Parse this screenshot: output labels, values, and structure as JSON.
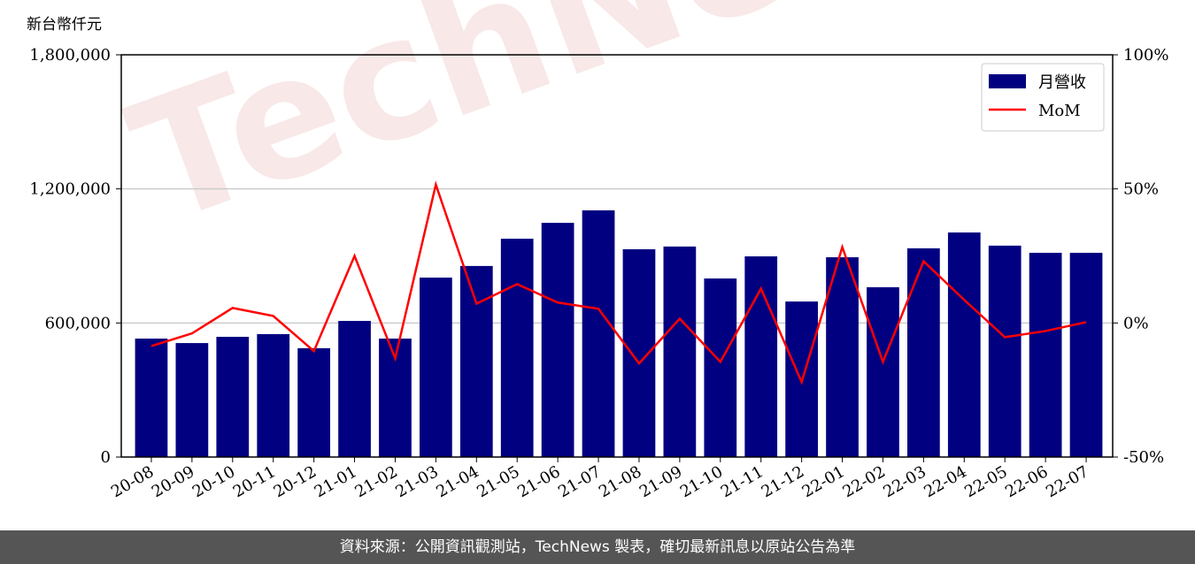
{
  "chart_data": {
    "type": "bar",
    "y_label": "新台幣仟元",
    "watermark": "TechNews",
    "categories": [
      "20-08",
      "20-09",
      "20-10",
      "20-11",
      "20-12",
      "21-01",
      "21-02",
      "21-03",
      "21-04",
      "21-05",
      "21-06",
      "21-07",
      "21-08",
      "21-09",
      "21-10",
      "21-11",
      "21-12",
      "22-01",
      "22-02",
      "22-03",
      "22-04",
      "22-05",
      "22-06",
      "22-07"
    ],
    "series": [
      {
        "name": "月營收",
        "type": "bar",
        "color": "#000080",
        "values": [
          530000,
          510000,
          538000,
          550000,
          487000,
          609000,
          530000,
          803000,
          855000,
          977000,
          1048000,
          1104000,
          930000,
          942000,
          799000,
          898000,
          696000,
          894000,
          760000,
          934000,
          1005000,
          946000,
          914000,
          914000
        ]
      },
      {
        "name": "MoM",
        "type": "line",
        "axis": "y2",
        "color": "#ff0000",
        "values": [
          -8.6,
          -3.9,
          5.6,
          2.6,
          -10.5,
          25.0,
          -13.2,
          51.6,
          7.2,
          14.5,
          7.6,
          5.3,
          -15.1,
          1.6,
          -14.5,
          12.8,
          -22.0,
          28.3,
          -14.5,
          23.0,
          8.6,
          -5.3,
          -3.0,
          0.3
        ]
      }
    ],
    "ylim": [
      0,
      1800000
    ],
    "yticks": [
      0,
      {
        "value": 600000,
        "label": "600,000"
      },
      {
        "value": 1200000,
        "label": "1,200,000"
      },
      {
        "value": 1800000,
        "label": "1,800,000"
      }
    ],
    "y2lim": [
      -50,
      100
    ],
    "y2ticks": [
      {
        "value": -50,
        "label": "-50%"
      },
      {
        "value": 0,
        "label": "0%"
      },
      {
        "value": 50,
        "label": "50%"
      },
      {
        "value": 100,
        "label": "100%"
      }
    ],
    "grid": true,
    "legend": "upper right"
  },
  "footer": {
    "text": "資料來源：公開資訊觀測站，TechNews 製表，確切最新訊息以原站公告為準"
  }
}
